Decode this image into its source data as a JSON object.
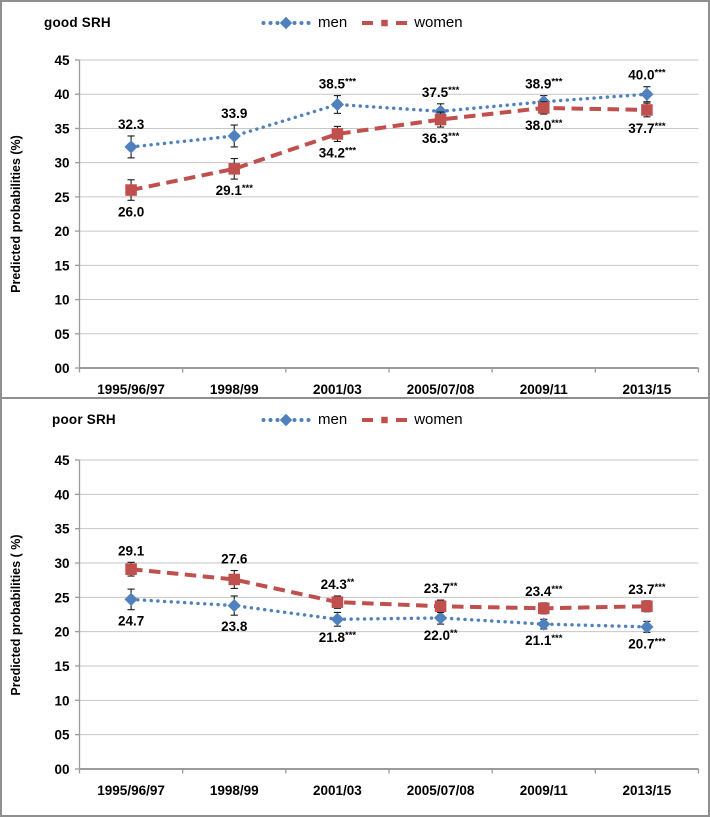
{
  "colors": {
    "men": "#4F81BD",
    "women": "#C0504D",
    "gridline": "#c6c6c6",
    "axis": "#9b9b9b",
    "error_bar": "#1a1a1a",
    "text": "#000000",
    "border": "#8f8f8f"
  },
  "chart_data": [
    {
      "type": "line",
      "title": "good SRH",
      "ylabel": "Predicted probabilities (%)",
      "xlabel": "",
      "grid": true,
      "legend_position": "top",
      "ylim": [
        0,
        45
      ],
      "ytick_step": 5,
      "ytick_labels": [
        "00",
        "05",
        "10",
        "15",
        "20",
        "25",
        "30",
        "35",
        "40",
        "45"
      ],
      "categories": [
        "1995/96/97",
        "1998/99",
        "2001/03",
        "2005/07/08",
        "2009/11",
        "2013/15"
      ],
      "series": [
        {
          "name": "men",
          "color": "#4F81BD",
          "marker": "diamond",
          "line_style": "dotted",
          "label_position": "above",
          "values": [
            32.3,
            33.9,
            38.5,
            37.5,
            38.9,
            40.0
          ],
          "labels": [
            "32.3",
            "33.9",
            "38.5",
            "37.5",
            "38.9",
            "40.0"
          ],
          "sig": [
            "",
            "",
            "***",
            "***",
            "***",
            "***"
          ],
          "errors": [
            1.6,
            1.6,
            1.3,
            1.1,
            0.9,
            1.1
          ]
        },
        {
          "name": "women",
          "color": "#C0504D",
          "marker": "square",
          "line_style": "dashed",
          "label_position": "below",
          "values": [
            26.0,
            29.1,
            34.2,
            36.3,
            38.0,
            37.7
          ],
          "labels": [
            "26.0",
            "29.1",
            "34.2",
            "36.3",
            "38.0",
            "37.7"
          ],
          "sig": [
            "",
            "***",
            "***",
            "***",
            "***",
            "***"
          ],
          "errors": [
            1.5,
            1.5,
            1.1,
            1.1,
            0.9,
            1.0
          ]
        }
      ]
    },
    {
      "type": "line",
      "title": "poor SRH",
      "ylabel": "Predicted probabilities ( %)",
      "xlabel": "",
      "grid": true,
      "legend_position": "top",
      "ylim": [
        0,
        45
      ],
      "ytick_step": 5,
      "ytick_labels": [
        "00",
        "05",
        "10",
        "15",
        "20",
        "25",
        "30",
        "35",
        "40",
        "45"
      ],
      "categories": [
        "1995/96/97",
        "1998/99",
        "2001/03",
        "2005/07/08",
        "2009/11",
        "2013/15"
      ],
      "series": [
        {
          "name": "men",
          "color": "#4F81BD",
          "marker": "diamond",
          "line_style": "dotted",
          "label_position": "below",
          "values": [
            24.7,
            23.8,
            21.8,
            22.0,
            21.1,
            20.7
          ],
          "labels": [
            "24.7",
            "23.8",
            "21.8",
            "22.0",
            "21.1",
            "20.7"
          ],
          "sig": [
            "",
            "",
            "***",
            "**",
            "***",
            "***"
          ],
          "errors": [
            1.5,
            1.4,
            1.0,
            0.9,
            0.7,
            0.8
          ]
        },
        {
          "name": "women",
          "color": "#C0504D",
          "marker": "square",
          "line_style": "dashed",
          "label_position": "above",
          "values": [
            29.1,
            27.6,
            24.3,
            23.7,
            23.4,
            23.7
          ],
          "labels": [
            "29.1",
            "27.6",
            "24.3",
            "23.7",
            "23.4",
            "23.7"
          ],
          "sig": [
            "",
            "",
            "**",
            "**",
            "***",
            "***"
          ],
          "errors": [
            1.0,
            1.3,
            0.9,
            0.9,
            0.8,
            0.8
          ]
        }
      ]
    }
  ]
}
